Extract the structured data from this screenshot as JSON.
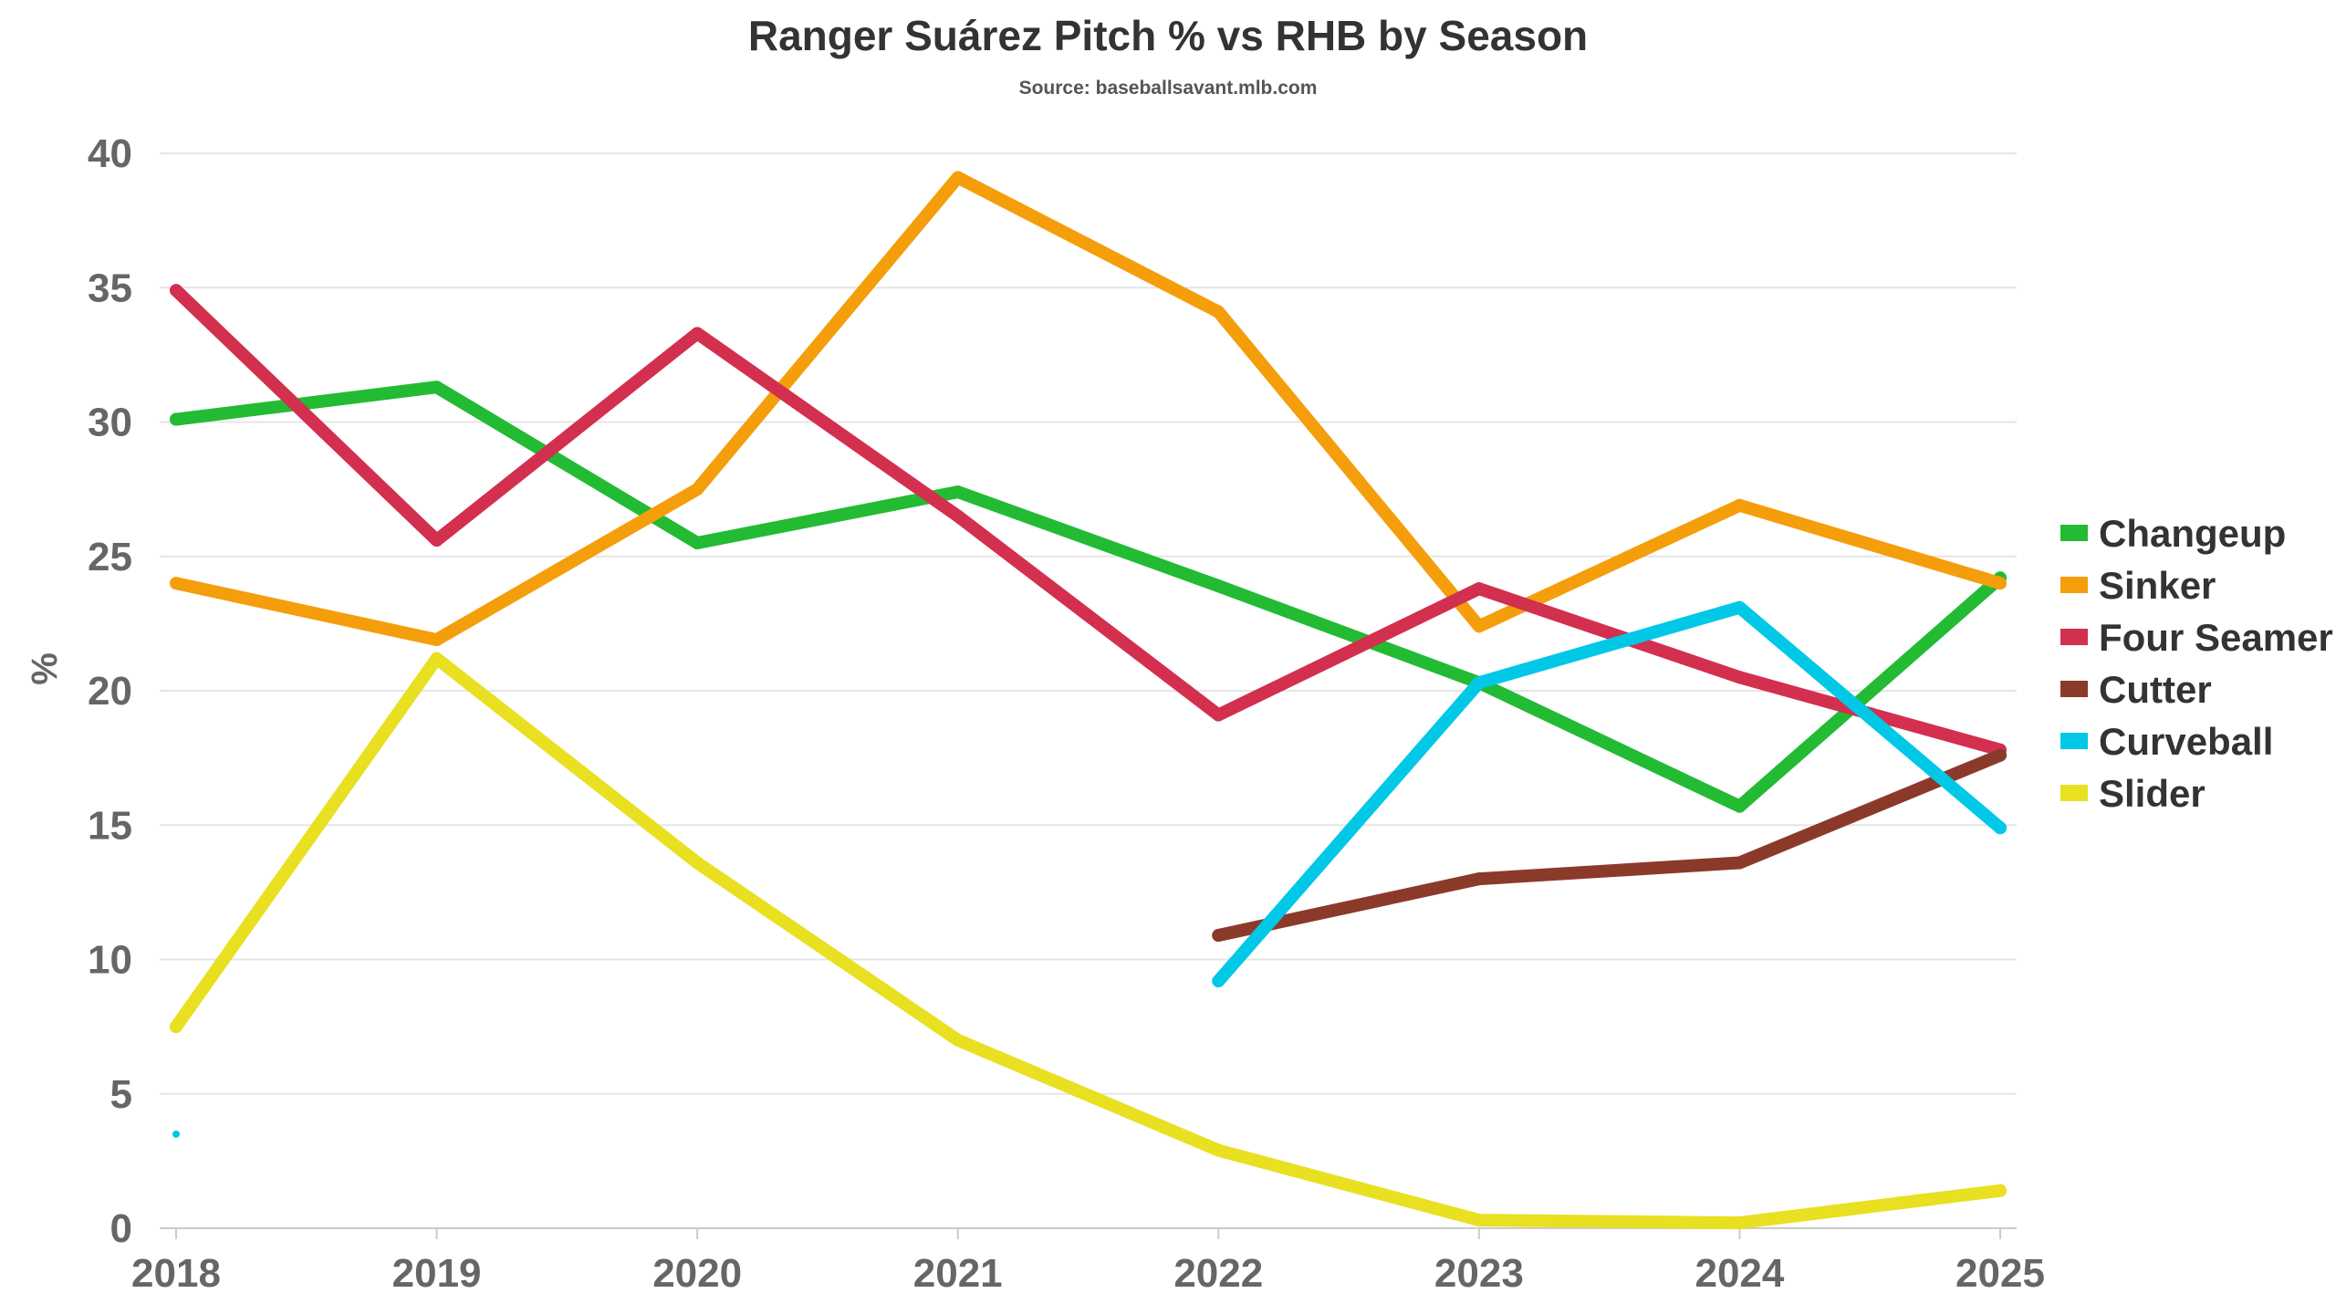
{
  "chart_data": {
    "type": "line",
    "title": "Ranger Suárez Pitch % vs RHB by Season",
    "subtitle": "Source: baseballsavant.mlb.com",
    "xlabel": "",
    "ylabel": "%",
    "x": [
      "2018",
      "2019",
      "2020",
      "2021",
      "2022",
      "2023",
      "2024",
      "2025"
    ],
    "ylim": [
      0,
      40
    ],
    "yticks": [
      0,
      5,
      10,
      15,
      20,
      25,
      30,
      35,
      40
    ],
    "grid": true,
    "legend_position": "right",
    "series": [
      {
        "name": "Changeup",
        "color": "#22bb33",
        "values": [
          30.1,
          31.3,
          25.5,
          27.4,
          23.9,
          20.3,
          15.7,
          24.2
        ]
      },
      {
        "name": "Sinker",
        "color": "#f59e0b",
        "values": [
          24.0,
          21.9,
          27.5,
          39.1,
          34.1,
          22.4,
          26.9,
          24.0
        ]
      },
      {
        "name": "Four Seamer",
        "color": "#d32f4f",
        "values": [
          34.9,
          25.6,
          33.3,
          26.5,
          19.1,
          23.8,
          20.5,
          17.8
        ]
      },
      {
        "name": "Cutter",
        "color": "#8b3a2a",
        "values": [
          null,
          null,
          null,
          null,
          10.9,
          13.0,
          13.6,
          17.6
        ]
      },
      {
        "name": "Curveball",
        "color": "#00c8e6",
        "values": [
          3.5,
          null,
          null,
          null,
          9.2,
          20.3,
          23.1,
          14.9
        ]
      },
      {
        "name": "Slider",
        "color": "#e8e020",
        "values": [
          7.5,
          21.2,
          13.6,
          7.0,
          2.9,
          0.3,
          0.2,
          1.4
        ]
      }
    ]
  }
}
